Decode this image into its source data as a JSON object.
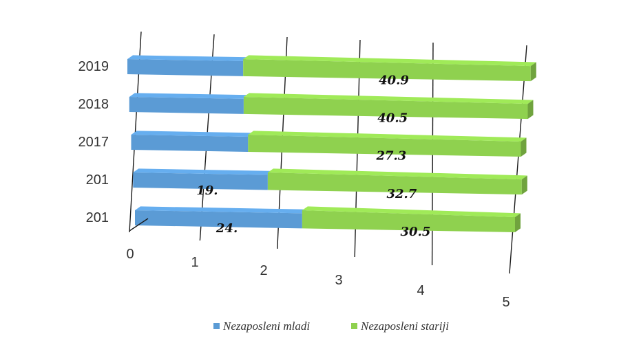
{
  "chart_data": {
    "type": "bar",
    "orientation": "horizontal",
    "stacked": true,
    "style": "3d",
    "categories": [
      "2019",
      "2018",
      "2017",
      "201",
      "201"
    ],
    "series": [
      {
        "name": "Nezaposleni mladi",
        "color": "#5b9bd5",
        "values": [
          1.45,
          1.45,
          1.5,
          1.75,
          2.2
        ],
        "labels": [
          "",
          "",
          "",
          "19.",
          "24."
        ]
      },
      {
        "name": "Nezaposleni stariji",
        "color": "#8fd14f",
        "values": [
          3.6,
          3.6,
          3.5,
          3.3,
          2.8
        ],
        "labels": [
          "40.9",
          "40.5",
          "27.3",
          "32.7",
          "30.5"
        ]
      }
    ],
    "x_ticks": [
      "0",
      "1",
      "2",
      "3",
      "4",
      "5"
    ],
    "xlim": [
      0,
      5
    ],
    "grid": true,
    "legend_position": "bottom",
    "title": "",
    "xlabel": "",
    "ylabel": ""
  }
}
